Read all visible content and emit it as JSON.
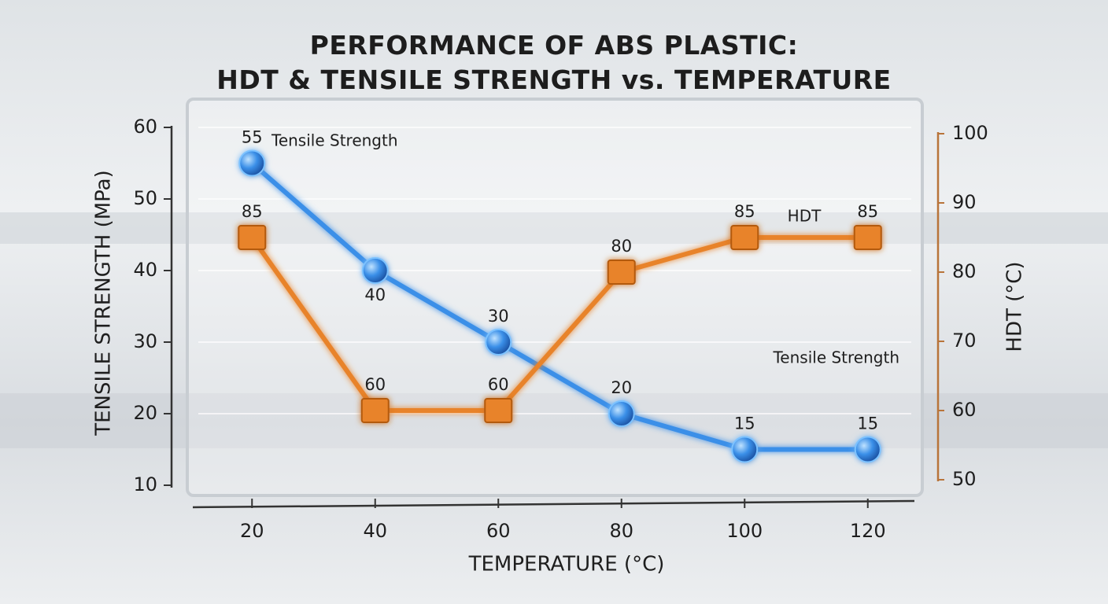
{
  "chart_data": {
    "type": "line",
    "title": "PERFORMANCE OF ABS PLASTIC:\nHDT & TENSILE STRENGTH vs. TEMPERATURE",
    "xlabel": "TEMPERATURE (°C)",
    "ylabel": "TENSILE STRENGTH (MPa)",
    "y2label": "HDT (°C)",
    "x": [
      20,
      40,
      60,
      80,
      100,
      120
    ],
    "xlim": [
      10,
      130
    ],
    "xticks": [
      20,
      40,
      60,
      80,
      100,
      120
    ],
    "ylim": [
      10,
      60
    ],
    "yticks": [
      10,
      20,
      30,
      40,
      50,
      60
    ],
    "y2lim": [
      50,
      100
    ],
    "y2ticks": [
      50,
      60,
      70,
      80,
      90,
      100
    ],
    "grid": true,
    "series": [
      {
        "name": "Tensile Strength",
        "color": "#3a8fe8",
        "values": [
          55,
          40,
          30,
          20,
          15,
          15
        ]
      },
      {
        "name": "HDT",
        "color": "#e8832a",
        "axis": "y2",
        "values": [
          85,
          60,
          60,
          80,
          85,
          85
        ]
      }
    ]
  }
}
